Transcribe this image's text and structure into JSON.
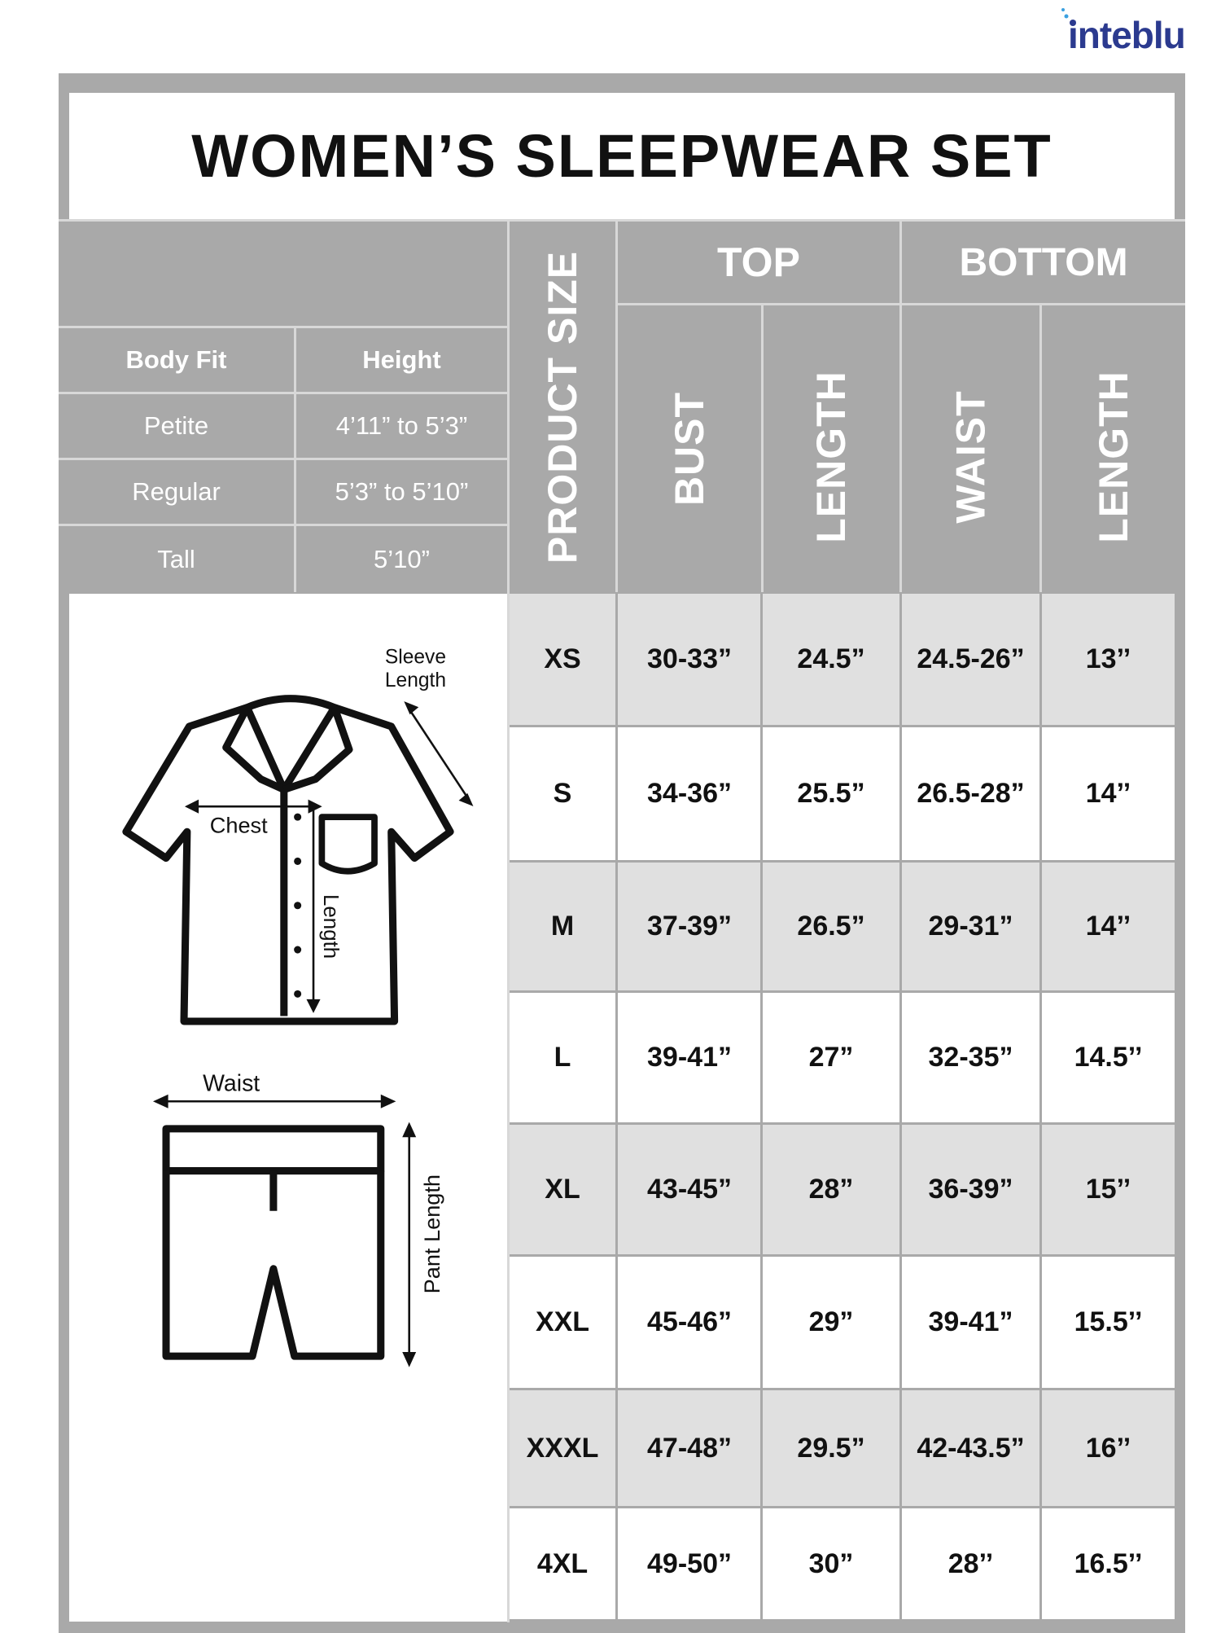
{
  "brand": {
    "logo_text": "inteblu",
    "color": "#2b3a8f"
  },
  "title": "WOMEN’S SLEEPWEAR SET",
  "colors": {
    "header_grey": "#a9a9a9",
    "row_grey": "#e0e0e0",
    "text": "#111111"
  },
  "headers": {
    "product_size": "PRODUCT SIZE",
    "top": "TOP",
    "bottom": "BOTTOM",
    "bust": "BUST",
    "top_length": "LENGTH",
    "waist": "WAIST",
    "bottom_length": "LENGTH"
  },
  "body_fit": {
    "columns": [
      "Body Fit",
      "Height"
    ],
    "rows": [
      [
        "Petite",
        "4’11” to 5’3”"
      ],
      [
        "Regular",
        "5’3” to 5’10”"
      ],
      [
        "Tall",
        "5’10”"
      ]
    ]
  },
  "illustration": {
    "sleeve_length": [
      "Sleeve",
      "Length"
    ],
    "chest": "Chest",
    "length": "Length",
    "waist": "Waist",
    "pant_length": "Pant Length"
  },
  "sizes": [
    [
      "XS",
      "30-33”",
      "24.5”",
      "24.5-26”",
      "13’’"
    ],
    [
      "S",
      "34-36”",
      "25.5”",
      "26.5-28”",
      "14’’"
    ],
    [
      "M",
      "37-39”",
      "26.5”",
      "29-31”",
      "14’’"
    ],
    [
      "L",
      "39-41”",
      "27”",
      "32-35”",
      "14.5’’"
    ],
    [
      "XL",
      "43-45”",
      "28”",
      "36-39”",
      "15’’"
    ],
    [
      "XXL",
      "45-46”",
      "29”",
      "39-41”",
      "15.5’’"
    ],
    [
      "XXXL",
      "47-48”",
      "29.5”",
      "42-43.5”",
      "16’’"
    ],
    [
      "4XL",
      "49-50”",
      "30”",
      "28’’",
      "16.5’’"
    ]
  ]
}
